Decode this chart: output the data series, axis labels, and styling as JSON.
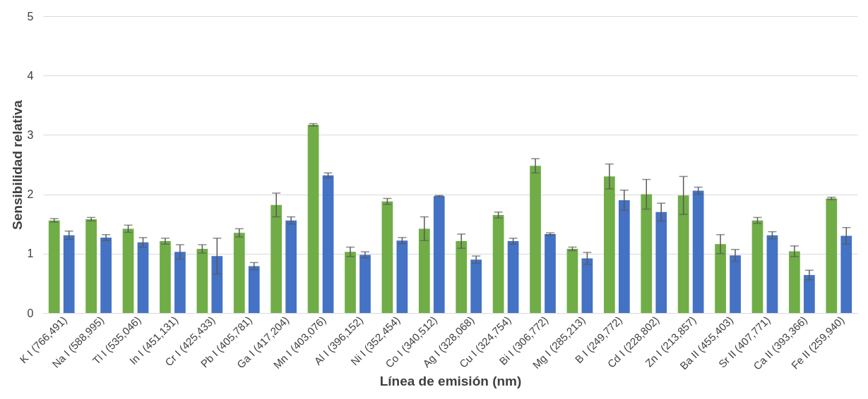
{
  "chart_data": {
    "type": "bar",
    "xlabel": "Línea de emisión (nm)",
    "ylabel": "Sensibilidad relativa",
    "categories": [
      "K I (766,491)",
      "Na I (588,995)",
      "Tl I (535,046)",
      "In I (451,131)",
      "Cr I (425,433)",
      "Pb I (405,781)",
      "Ga I (417,204)",
      "Mn I (403,076)",
      "Al I (396,152)",
      "Ni I (352,454)",
      "Co I (340,512)",
      "Ag I (328,068)",
      "Cu I (324,754)",
      "Bi I (306,772)",
      "Mg I (285,213)",
      "B I (249,772)",
      "Cd I (228,802)",
      "Zn I (213,857)",
      "Ba II (455,403)",
      "Sr II (407,771)",
      "Ca II (393,366)",
      "Fe II (259,940)"
    ],
    "series": [
      {
        "color": "#70ad47",
        "values": [
          1.56,
          1.58,
          1.42,
          1.21,
          1.08,
          1.35,
          1.82,
          3.17,
          1.03,
          1.88,
          1.42,
          1.21,
          1.65,
          2.48,
          1.08,
          2.3,
          2.0,
          1.98,
          1.16,
          1.56,
          1.04,
          1.93
        ],
        "errors": [
          0.03,
          0.03,
          0.06,
          0.05,
          0.07,
          0.07,
          0.2,
          0.02,
          0.08,
          0.05,
          0.2,
          0.12,
          0.05,
          0.12,
          0.03,
          0.21,
          0.25,
          0.32,
          0.16,
          0.05,
          0.09,
          0.02
        ]
      },
      {
        "color": "#4472c4",
        "values": [
          1.31,
          1.27,
          1.19,
          1.03,
          0.96,
          0.79,
          1.56,
          2.32,
          0.98,
          1.22,
          1.97,
          0.9,
          1.21,
          1.33,
          0.92,
          1.9,
          1.7,
          2.06,
          0.97,
          1.31,
          0.64,
          1.3
        ],
        "errors": [
          0.07,
          0.05,
          0.08,
          0.12,
          0.3,
          0.06,
          0.06,
          0.04,
          0.05,
          0.05,
          0.01,
          0.06,
          0.05,
          0.02,
          0.1,
          0.17,
          0.15,
          0.06,
          0.1,
          0.06,
          0.08,
          0.14
        ]
      }
    ],
    "ylim": [
      0,
      5
    ],
    "yticks": [
      0,
      1,
      2,
      3,
      4,
      5
    ],
    "grid": "y"
  }
}
